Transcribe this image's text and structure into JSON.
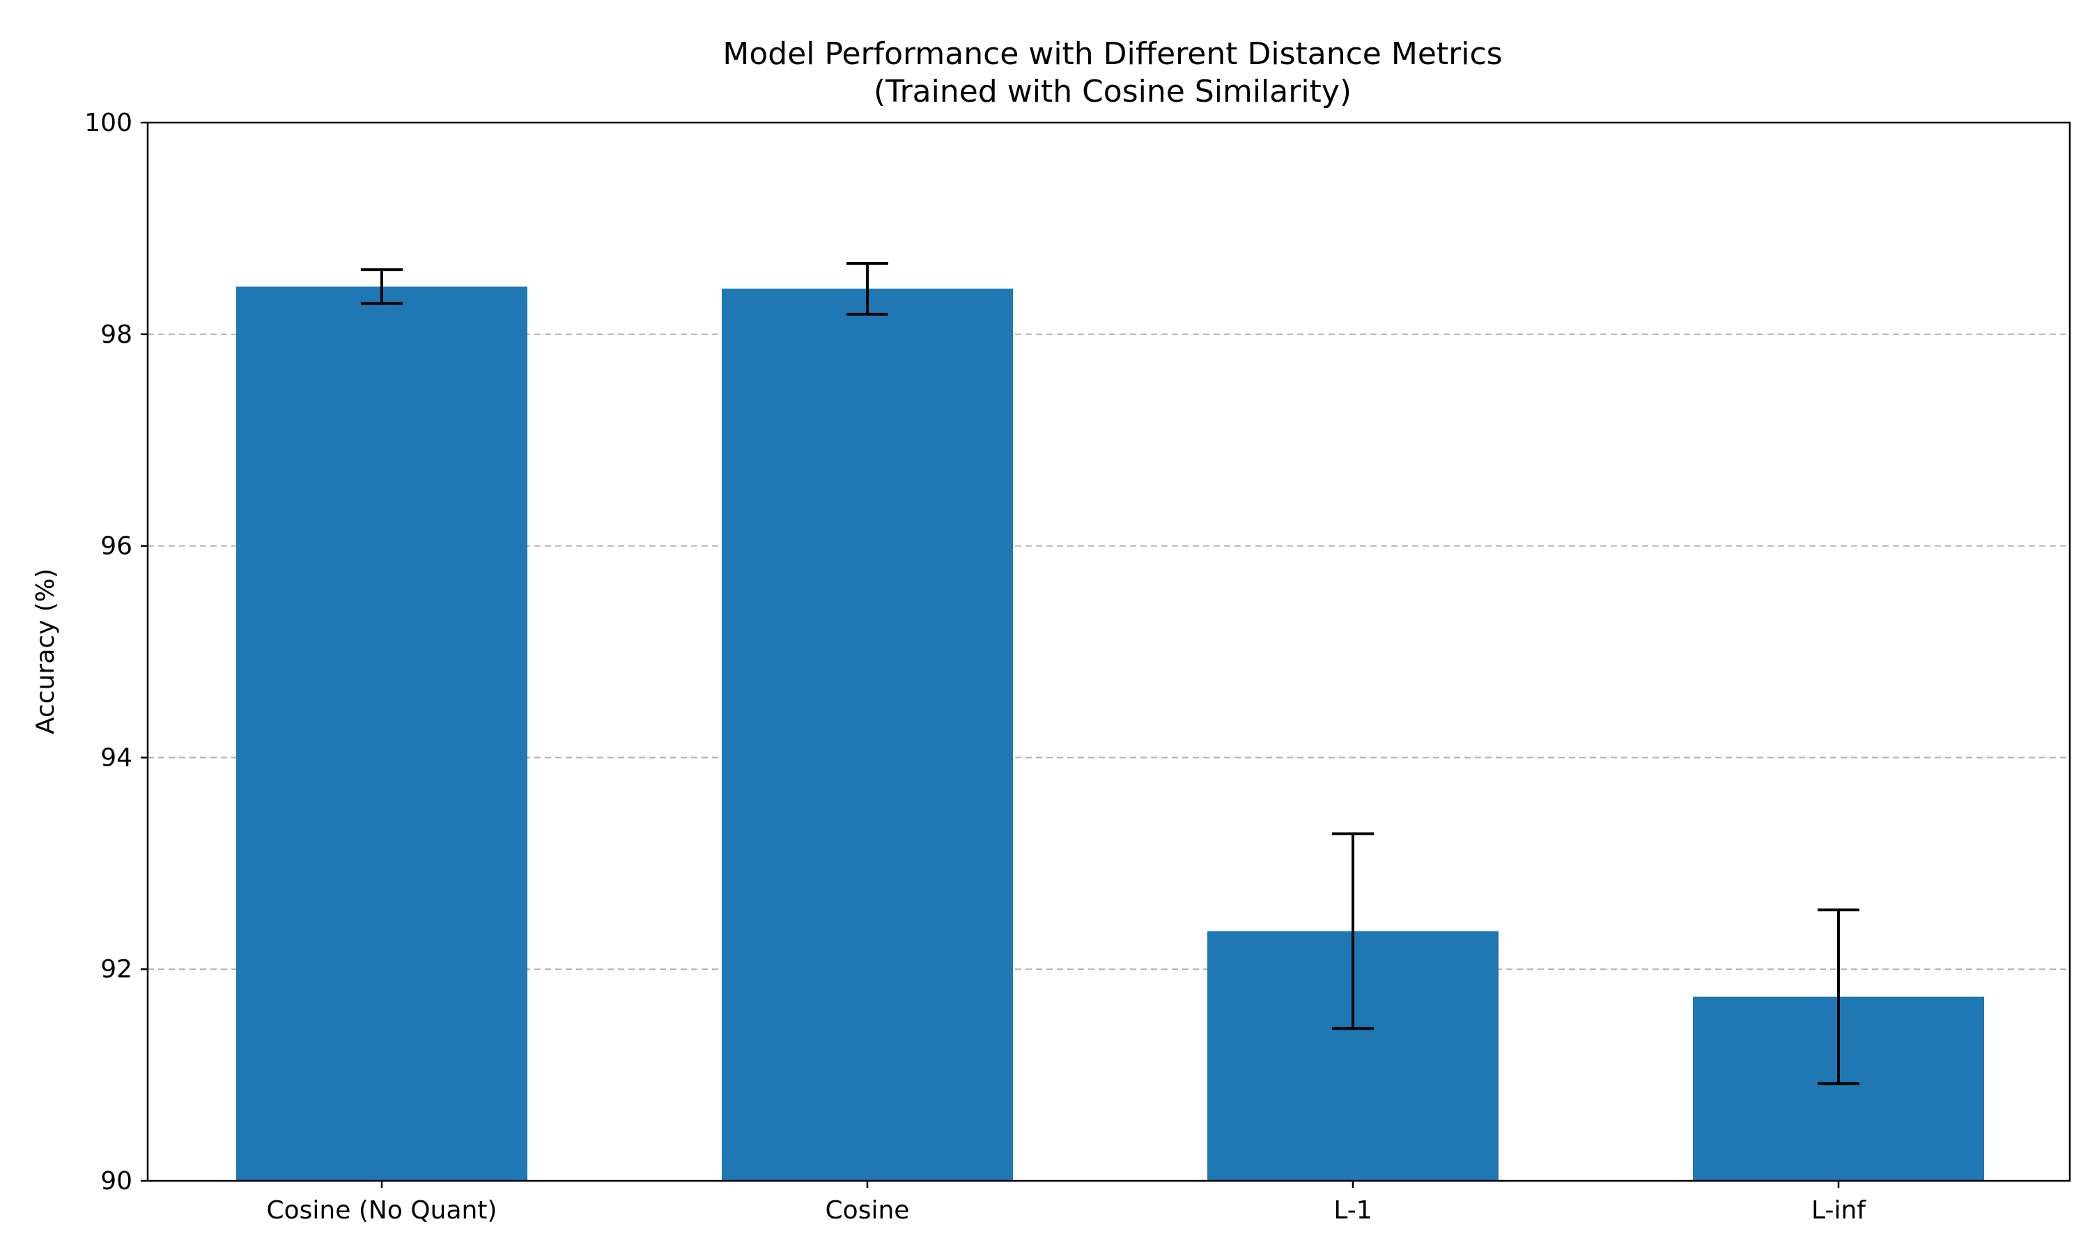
{
  "chart_data": {
    "type": "bar",
    "title": "Model Performance with Different Distance Metrics",
    "subtitle": "(Trained with Cosine Similarity)",
    "xlabel": "",
    "ylabel": "Accuracy (%)",
    "ylim": [
      90,
      100
    ],
    "yticks": [
      90,
      92,
      94,
      96,
      98,
      100
    ],
    "categories": [
      "Cosine (No Quant)",
      "Cosine",
      "L-1",
      "L-inf"
    ],
    "values": [
      98.45,
      98.43,
      92.36,
      91.74
    ],
    "errors": [
      0.16,
      0.24,
      0.92,
      0.82
    ],
    "bar_color": "#1f77b4",
    "error_color": "#000000",
    "grid": "horizontal dashed",
    "legend": "none"
  }
}
